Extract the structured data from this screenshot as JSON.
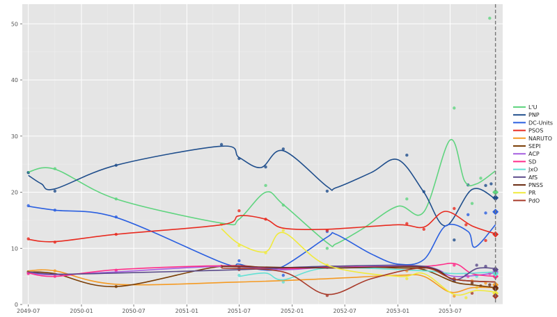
{
  "chart_data": {
    "type": "line",
    "title": "",
    "xlabel": "",
    "ylabel": "",
    "x_ticks": [
      "2049-07",
      "2050-01",
      "2050-07",
      "2051-01",
      "2051-07",
      "2052-01",
      "2052-07",
      "2053-01",
      "2053-07"
    ],
    "y_ticks": [
      "0",
      "10",
      "20",
      "30",
      "40",
      "50"
    ],
    "xlim": [
      "2049-06-10",
      "2053-12-30"
    ],
    "ylim": [
      0,
      53.5
    ],
    "grid": true,
    "legend_position": "right",
    "reference_line_date": "2053-12-05",
    "background": "#e5e5e5",
    "series": [
      {
        "name": "L'U",
        "color": "#5fd47f",
        "line": [
          [
            "2049-07-01",
            23.6
          ],
          [
            "2049-10-01",
            24.1
          ],
          [
            "2050-05-01",
            18.8
          ],
          [
            "2051-05-01",
            14.5
          ],
          [
            "2051-07-01",
            15.2
          ],
          [
            "2051-10-01",
            20.0
          ],
          [
            "2051-12-01",
            17.8
          ],
          [
            "2052-05-01",
            11.0
          ],
          [
            "2052-06-01",
            10.8
          ],
          [
            "2052-09-01",
            13.5
          ],
          [
            "2053-01-01",
            17.5
          ],
          [
            "2053-04-01",
            16.5
          ],
          [
            "2053-07-01",
            29.3
          ],
          [
            "2053-08-20",
            22.0
          ],
          [
            "2053-10-01",
            21.5
          ],
          [
            "2053-12-05",
            23.8
          ]
        ],
        "points": [
          [
            "2049-07-01",
            23.5
          ],
          [
            "2049-10-01",
            24.2
          ],
          [
            "2050-05-01",
            18.8
          ],
          [
            "2051-10-01",
            21.2
          ],
          [
            "2051-12-01",
            17.7
          ],
          [
            "2052-05-01",
            10.0
          ],
          [
            "2053-02-01",
            18.8
          ],
          [
            "2053-07-15",
            35.0
          ],
          [
            "2053-09-15",
            18.0
          ],
          [
            "2053-10-15",
            22.5
          ],
          [
            "2053-11-15",
            51.0
          ]
        ],
        "end": 20.0
      },
      {
        "name": "PNP",
        "color": "#1f4e8c",
        "line": [
          [
            "2049-07-01",
            23.0
          ],
          [
            "2049-08-15",
            21.5
          ],
          [
            "2049-10-01",
            20.6
          ],
          [
            "2050-05-01",
            24.8
          ],
          [
            "2051-05-01",
            28.2
          ],
          [
            "2051-07-01",
            26.2
          ],
          [
            "2051-09-15",
            24.4
          ],
          [
            "2051-12-01",
            27.4
          ],
          [
            "2052-05-01",
            21.0
          ],
          [
            "2052-06-01",
            20.8
          ],
          [
            "2052-10-01",
            23.5
          ],
          [
            "2053-01-01",
            25.8
          ],
          [
            "2053-04-01",
            20.0
          ],
          [
            "2053-06-15",
            14.0
          ],
          [
            "2053-09-15",
            20.5
          ],
          [
            "2053-12-05",
            18.8
          ]
        ],
        "points": [
          [
            "2049-07-01",
            23.5
          ],
          [
            "2049-10-01",
            20.2
          ],
          [
            "2050-05-01",
            24.8
          ],
          [
            "2051-05-01",
            28.5
          ],
          [
            "2051-07-01",
            26.0
          ],
          [
            "2051-10-01",
            24.5
          ],
          [
            "2051-12-01",
            27.7
          ],
          [
            "2052-05-01",
            20.2
          ],
          [
            "2053-02-01",
            26.6
          ],
          [
            "2053-04-01",
            20.1
          ],
          [
            "2053-07-15",
            11.5
          ],
          [
            "2053-09-01",
            21.3
          ],
          [
            "2053-11-01",
            21.2
          ],
          [
            "2053-11-20",
            21.5
          ]
        ],
        "end": 19.0
      },
      {
        "name": "DC-Units",
        "color": "#2a5fe0",
        "line": [
          [
            "2049-07-01",
            17.5
          ],
          [
            "2049-10-01",
            16.8
          ],
          [
            "2050-05-01",
            15.5
          ],
          [
            "2051-05-01",
            7.5
          ],
          [
            "2051-07-01",
            7.2
          ],
          [
            "2051-09-15",
            6.2
          ],
          [
            "2051-12-01",
            6.8
          ],
          [
            "2052-05-01",
            12.0
          ],
          [
            "2052-06-01",
            12.5
          ],
          [
            "2052-10-01",
            9.0
          ],
          [
            "2053-01-01",
            7.2
          ],
          [
            "2053-04-01",
            8.0
          ],
          [
            "2053-06-15",
            14.0
          ],
          [
            "2053-09-01",
            13.0
          ],
          [
            "2053-09-25",
            10.2
          ],
          [
            "2053-12-05",
            14.2
          ]
        ],
        "points": [
          [
            "2049-07-01",
            17.6
          ],
          [
            "2049-10-01",
            16.8
          ],
          [
            "2050-05-01",
            15.6
          ],
          [
            "2051-07-01",
            7.8
          ],
          [
            "2051-12-01",
            5.2
          ],
          [
            "2052-05-01",
            13.0
          ],
          [
            "2053-02-01",
            6.9
          ],
          [
            "2053-09-01",
            16.0
          ],
          [
            "2053-11-01",
            16.3
          ]
        ],
        "end": 16.5
      },
      {
        "name": "PSOS",
        "color": "#e82a1f",
        "line": [
          [
            "2049-07-01",
            11.6
          ],
          [
            "2049-10-01",
            11.2
          ],
          [
            "2050-05-01",
            12.5
          ],
          [
            "2051-05-01",
            14.2
          ],
          [
            "2051-07-01",
            15.8
          ],
          [
            "2051-10-01",
            15.2
          ],
          [
            "2051-12-01",
            13.6
          ],
          [
            "2052-05-01",
            13.4
          ],
          [
            "2053-01-01",
            14.2
          ],
          [
            "2053-04-01",
            13.8
          ],
          [
            "2053-06-15",
            16.6
          ],
          [
            "2053-09-15",
            14.0
          ],
          [
            "2053-12-05",
            12.6
          ]
        ],
        "points": [
          [
            "2049-07-01",
            11.7
          ],
          [
            "2049-10-01",
            11.1
          ],
          [
            "2050-05-01",
            12.5
          ],
          [
            "2051-07-01",
            16.7
          ],
          [
            "2051-10-01",
            15.2
          ],
          [
            "2052-05-01",
            13.2
          ],
          [
            "2053-02-01",
            14.4
          ],
          [
            "2053-04-01",
            13.4
          ],
          [
            "2053-07-15",
            17.1
          ],
          [
            "2053-08-25",
            14.2
          ],
          [
            "2053-11-01",
            11.4
          ]
        ],
        "end": 12.5
      },
      {
        "name": "NARUTO",
        "color": "#f59a22",
        "line": [
          [
            "2049-07-01",
            6.0
          ],
          [
            "2049-10-01",
            6.0
          ],
          [
            "2050-05-01",
            3.6
          ],
          [
            "2051-07-01",
            4.0
          ],
          [
            "2052-05-01",
            4.6
          ],
          [
            "2053-01-01",
            5.2
          ],
          [
            "2053-04-01",
            5.0
          ],
          [
            "2053-07-01",
            2.2
          ],
          [
            "2053-09-15",
            3.0
          ],
          [
            "2053-12-05",
            3.0
          ]
        ],
        "points": [
          [
            "2049-07-01",
            5.8
          ],
          [
            "2049-10-01",
            6.0
          ],
          [
            "2051-05-01",
            14.3
          ],
          [
            "2053-02-01",
            6.0
          ],
          [
            "2053-07-15",
            1.5
          ],
          [
            "2053-09-15",
            4.2
          ],
          [
            "2053-11-01",
            3.8
          ]
        ],
        "end": 3.5
      },
      {
        "name": "SEPI",
        "color": "#7a3e06",
        "line": [
          [
            "2049-07-01",
            5.8
          ],
          [
            "2049-10-01",
            5.5
          ],
          [
            "2050-05-01",
            3.2
          ],
          [
            "2051-05-01",
            6.8
          ],
          [
            "2051-12-01",
            6.2
          ],
          [
            "2052-05-01",
            6.8
          ],
          [
            "2053-01-01",
            6.5
          ],
          [
            "2053-04-01",
            6.2
          ],
          [
            "2053-07-15",
            4.0
          ],
          [
            "2053-09-15",
            3.5
          ],
          [
            "2053-12-05",
            3.0
          ]
        ],
        "points": [
          [
            "2049-07-01",
            5.8
          ],
          [
            "2050-05-01",
            3.2
          ],
          [
            "2051-05-01",
            6.8
          ],
          [
            "2052-05-01",
            6.8
          ],
          [
            "2053-07-15",
            4.2
          ],
          [
            "2053-10-15",
            3.3
          ]
        ],
        "end": 2.8
      },
      {
        "name": "ACP",
        "color": "#a65ee0",
        "line": [
          [
            "2049-07-01",
            5.6
          ],
          [
            "2049-10-01",
            5.3
          ],
          [
            "2050-05-01",
            5.8
          ],
          [
            "2051-05-01",
            6.8
          ],
          [
            "2051-12-01",
            6.2
          ],
          [
            "2052-05-01",
            6.6
          ],
          [
            "2053-04-01",
            6.7
          ],
          [
            "2053-07-15",
            5.0
          ],
          [
            "2053-12-05",
            5.6
          ]
        ],
        "points": [
          [
            "2049-07-01",
            5.6
          ],
          [
            "2050-05-01",
            5.8
          ],
          [
            "2052-05-01",
            6.6
          ],
          [
            "2053-08-25",
            5.2
          ]
        ],
        "end": 5.8
      },
      {
        "name": "SD",
        "color": "#ff2e8a",
        "line": [
          [
            "2049-07-01",
            5.6
          ],
          [
            "2049-10-01",
            5.0
          ],
          [
            "2050-05-01",
            6.2
          ],
          [
            "2051-05-01",
            6.9
          ],
          [
            "2051-12-01",
            6.4
          ],
          [
            "2052-05-01",
            6.6
          ],
          [
            "2053-04-01",
            6.8
          ],
          [
            "2053-07-15",
            7.3
          ],
          [
            "2053-09-15",
            5.5
          ],
          [
            "2053-12-05",
            5.0
          ]
        ],
        "points": [
          [
            "2049-07-01",
            5.5
          ],
          [
            "2049-10-01",
            5.0
          ],
          [
            "2050-05-01",
            6.1
          ],
          [
            "2053-07-15",
            7.0
          ],
          [
            "2053-09-01",
            5.0
          ],
          [
            "2053-11-15",
            5.5
          ]
        ],
        "end": 5.0
      },
      {
        "name": "JxO",
        "color": "#62e0d4",
        "line": [
          [
            "2051-07-01",
            5.0
          ],
          [
            "2051-10-01",
            5.6
          ],
          [
            "2051-12-01",
            4.4
          ],
          [
            "2052-05-01",
            6.5
          ],
          [
            "2053-04-01",
            6.0
          ],
          [
            "2053-07-15",
            5.5
          ],
          [
            "2053-12-05",
            5.8
          ]
        ],
        "points": [
          [
            "2051-07-01",
            5.2
          ],
          [
            "2051-12-01",
            4.0
          ],
          [
            "2053-04-01",
            6.2
          ],
          [
            "2053-10-01",
            5.0
          ]
        ],
        "end": 5.5
      },
      {
        "name": "AfS",
        "color": "#5a4a8a",
        "line": [
          [
            "2049-07-01",
            5.8
          ],
          [
            "2049-10-01",
            5.4
          ],
          [
            "2050-05-01",
            5.6
          ],
          [
            "2051-07-01",
            6.2
          ],
          [
            "2052-05-01",
            6.8
          ],
          [
            "2053-04-01",
            6.8
          ],
          [
            "2053-07-15",
            4.4
          ],
          [
            "2053-10-01",
            6.4
          ],
          [
            "2053-12-05",
            6.4
          ]
        ],
        "points": [
          [
            "2051-07-01",
            6.5
          ],
          [
            "2053-07-15",
            4.2
          ],
          [
            "2053-10-01",
            7.0
          ],
          [
            "2053-11-01",
            6.8
          ]
        ],
        "end": 6.2
      },
      {
        "name": "PNSS",
        "color": "#6b2d14",
        "line": [
          [
            "2051-05-01",
            6.8
          ],
          [
            "2052-05-01",
            6.5
          ],
          [
            "2053-04-01",
            6.6
          ],
          [
            "2053-07-15",
            4.5
          ],
          [
            "2053-12-05",
            4.0
          ]
        ],
        "points": [
          [
            "2053-09-15",
            3.8
          ],
          [
            "2053-11-15",
            3.5
          ]
        ],
        "end": 3.0
      },
      {
        "name": "PR",
        "color": "#f0ea3c",
        "line": [
          [
            "2051-05-01",
            13.5
          ],
          [
            "2051-07-01",
            10.8
          ],
          [
            "2051-10-01",
            9.4
          ],
          [
            "2051-12-01",
            12.8
          ],
          [
            "2052-05-01",
            7.0
          ],
          [
            "2053-01-01",
            5.0
          ],
          [
            "2053-04-01",
            5.5
          ],
          [
            "2053-07-15",
            1.8
          ],
          [
            "2053-10-01",
            2.5
          ],
          [
            "2053-12-05",
            2.2
          ]
        ],
        "points": [
          [
            "2051-07-01",
            10.5
          ],
          [
            "2051-10-01",
            9.2
          ],
          [
            "2051-12-01",
            13.2
          ],
          [
            "2052-05-01",
            7.0
          ],
          [
            "2053-02-01",
            4.6
          ],
          [
            "2053-08-25",
            1.2
          ],
          [
            "2053-10-01",
            3.0
          ]
        ],
        "end": 2.0
      },
      {
        "name": "PdO",
        "color": "#a83a2a",
        "line": [
          [
            "2051-05-01",
            6.5
          ],
          [
            "2051-12-01",
            5.8
          ],
          [
            "2052-05-01",
            1.8
          ],
          [
            "2052-10-01",
            4.6
          ],
          [
            "2053-04-01",
            6.5
          ],
          [
            "2053-07-15",
            4.5
          ],
          [
            "2053-12-05",
            4.0
          ]
        ],
        "points": [
          [
            "2051-07-01",
            6.2
          ],
          [
            "2052-05-01",
            1.6
          ],
          [
            "2053-07-15",
            4.6
          ],
          [
            "2053-09-15",
            2.0
          ]
        ],
        "end": 1.5
      }
    ]
  }
}
